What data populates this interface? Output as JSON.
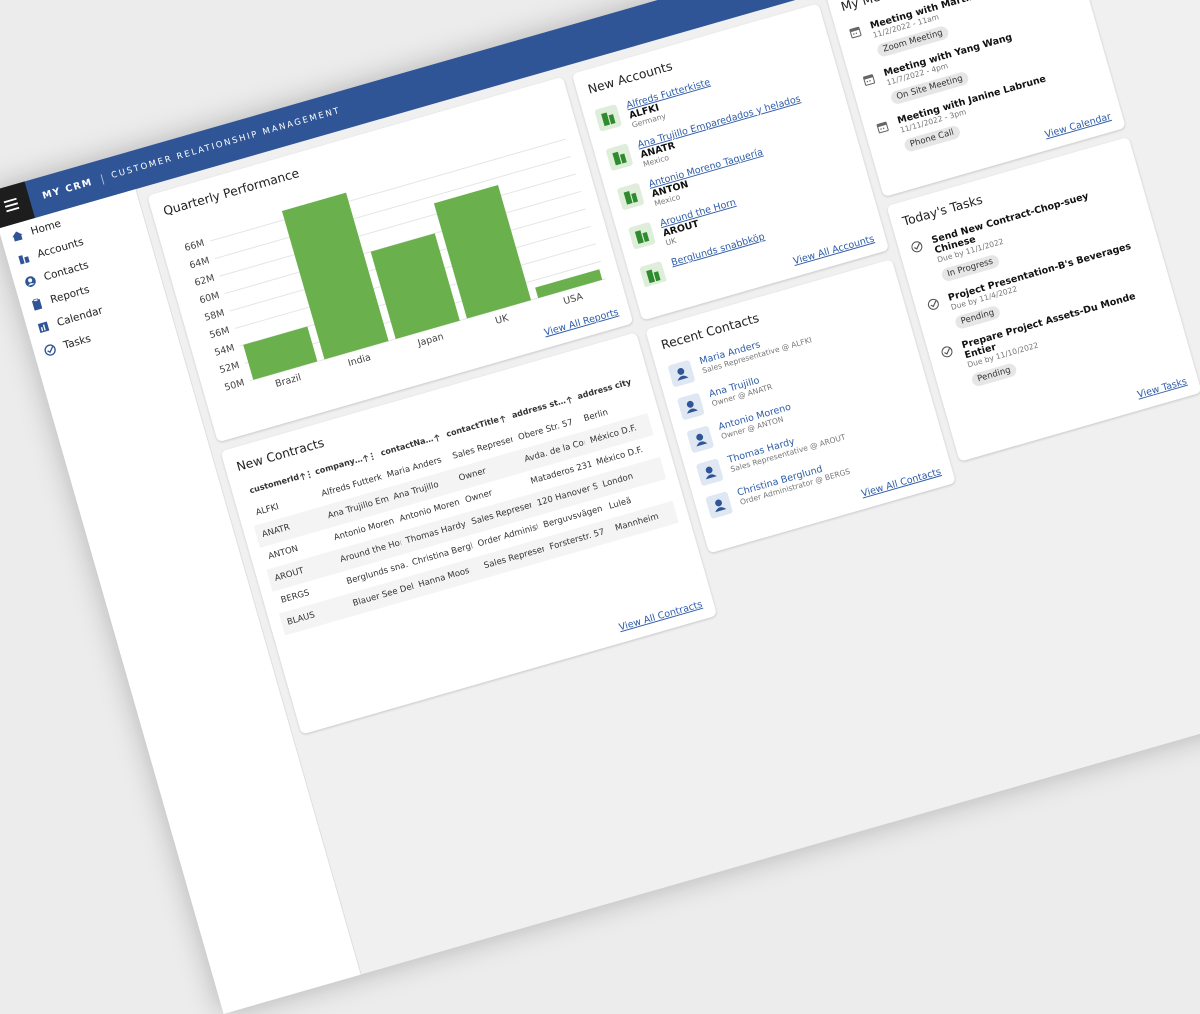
{
  "header": {
    "brand": "MY CRM",
    "subtitle": "CUSTOMER RELATIONSHIP MANAGEMENT"
  },
  "nav": [
    "Home",
    "Accounts",
    "Contacts",
    "Reports",
    "Calendar",
    "Tasks"
  ],
  "chart_data": {
    "type": "bar",
    "title": "Quarterly Performance",
    "categories": [
      "Brazil",
      "India",
      "Japan",
      "UK",
      "USA"
    ],
    "values": [
      54,
      67,
      60,
      63.2,
      51.2
    ],
    "color": "#6ab04c",
    "ylim": [
      50,
      68
    ],
    "yticks": [
      {
        "value": 50,
        "label": "50M"
      },
      {
        "value": 52,
        "label": "52M"
      },
      {
        "value": 54,
        "label": "54M"
      },
      {
        "value": 56,
        "label": "56M"
      },
      {
        "value": 58,
        "label": "58M"
      },
      {
        "value": 60,
        "label": "60M"
      },
      {
        "value": 62,
        "label": "62M"
      },
      {
        "value": 64,
        "label": "64M"
      },
      {
        "value": 66,
        "label": "66M"
      }
    ],
    "grid": true,
    "link": "View All Reports"
  },
  "accounts": {
    "title": "New Accounts",
    "items": [
      {
        "name": "Alfreds Futterkiste",
        "id": "ALFKI",
        "country": "Germany"
      },
      {
        "name": "Ana Trujillo Emparedados y helados",
        "id": "ANATR",
        "country": "Mexico"
      },
      {
        "name": "Antonio Moreno Taquería",
        "id": "ANTON",
        "country": "Mexico"
      },
      {
        "name": "Around the Horn",
        "id": "AROUT",
        "country": "UK"
      },
      {
        "name": "Berglunds snabbköp"
      }
    ],
    "link": "View All Accounts"
  },
  "meetings": {
    "title": "My Meetings",
    "items": [
      {
        "title": "Meeting with Martin Sommer",
        "date": "11/2/2022 - 11am",
        "type": "Zoom Meeting"
      },
      {
        "title": "Meeting with Yang Wang",
        "date": "11/7/2022 - 4pm",
        "type": "On Site Meeting"
      },
      {
        "title": "Meeting with Janine Labrune",
        "date": "11/11/2022 - 3pm",
        "type": "Phone Call"
      }
    ],
    "link": "View Calendar"
  },
  "tasks": {
    "title": "Today's Tasks",
    "items": [
      {
        "title": "Send New Contract-Chop-suey Chinese",
        "due": "Due by 11/1/2022",
        "status": "In Progress"
      },
      {
        "title": "Project Presentation-B's Beverages",
        "due": "Due by 11/4/2022",
        "status": "Pending"
      },
      {
        "title": "Prepare Project Assets-Du Monde Entier",
        "due": "Due by 11/10/2022",
        "status": "Pending"
      }
    ],
    "link": "View Tasks"
  },
  "contacts": {
    "title": "Recent Contacts",
    "items": [
      {
        "name": "Maria Anders",
        "role": "Sales Representative @ ALFKI"
      },
      {
        "name": "Ana Trujillo",
        "role": "Owner @ ANATR"
      },
      {
        "name": "Antonio Moreno",
        "role": "Owner @ ANTON"
      },
      {
        "name": "Thomas Hardy",
        "role": "Sales Representative @ AROUT"
      },
      {
        "name": "Christina Berglund",
        "role": "Order Administrator @ BERGS"
      }
    ],
    "link": "View All Contacts"
  },
  "contracts": {
    "title": "New Contracts",
    "columns": [
      "customerId",
      "company…",
      "contactNa…",
      "contactTitle",
      "address st…",
      "address city"
    ],
    "rows": [
      [
        "ALFKI",
        "Alfreds Futterki…",
        "Maria Anders",
        "Sales Represen…",
        "Obere Str. 57",
        "Berlin"
      ],
      [
        "ANATR",
        "Ana Trujillo Em…",
        "Ana Trujillo",
        "Owner",
        "Avda. de la Con…",
        "México D.F."
      ],
      [
        "ANTON",
        "Antonio Moren…",
        "Antonio Moreno",
        "Owner",
        "Mataderos 2312",
        "México D.F."
      ],
      [
        "AROUT",
        "Around the Horn",
        "Thomas Hardy",
        "Sales Represen…",
        "120 Hanover Sq.",
        "London"
      ],
      [
        "BERGS",
        "Berglunds sna…",
        "Christina Bergl…",
        "Order Administ…",
        "Berguvsvägen 8",
        "Luleå"
      ],
      [
        "BLAUS",
        "Blauer See Deli…",
        "Hanna Moos",
        "Sales Represen…",
        "Forsterstr. 57",
        "Mannheim"
      ]
    ],
    "link": "View All Contracts"
  }
}
